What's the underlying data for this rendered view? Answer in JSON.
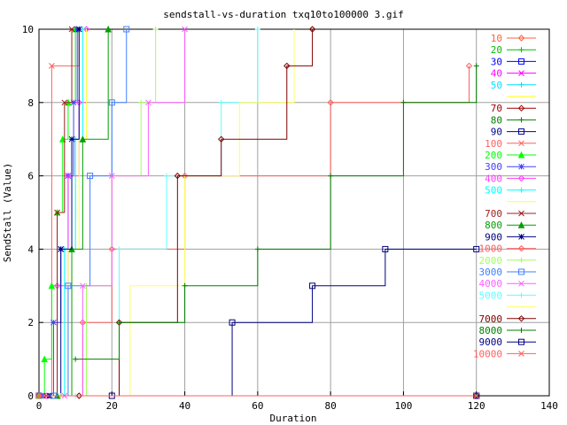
{
  "chart_data": {
    "type": "line",
    "title": "sendstall-vs-duration txq10to100000 3.gif",
    "xlabel": "Duration",
    "ylabel": "SendStall (Value)",
    "xlim": [
      0,
      140
    ],
    "ylim": [
      0,
      10
    ],
    "xticks": [
      0,
      20,
      40,
      60,
      80,
      100,
      120,
      140
    ],
    "yticks": [
      0,
      2,
      4,
      6,
      8,
      10
    ],
    "grid": true,
    "legend_position": "right",
    "series": [
      {
        "name": "10",
        "color": "#ff6040",
        "marker": "diamond",
        "x": [
          0,
          120
        ],
        "y": [
          0,
          0
        ]
      },
      {
        "name": "20",
        "color": "#00c000",
        "marker": "plus",
        "x": [
          0,
          120
        ],
        "y": [
          0,
          0
        ]
      },
      {
        "name": "30",
        "color": "#0000ff",
        "marker": "square",
        "x": [
          0,
          120
        ],
        "y": [
          0,
          0
        ]
      },
      {
        "name": "40",
        "color": "#ff00ff",
        "marker": "cross",
        "x": [
          0,
          120
        ],
        "y": [
          0,
          0
        ]
      },
      {
        "name": "50",
        "color": "#00e0ff",
        "marker": "plus",
        "x": [
          0,
          120
        ],
        "y": [
          0,
          0
        ]
      },
      {
        "name": "",
        "color": "#ffff00",
        "marker": "none",
        "x": [
          0,
          120
        ],
        "y": [
          0,
          0
        ]
      },
      {
        "name": "70",
        "color": "#a00000",
        "marker": "diamond",
        "x": [
          0,
          120
        ],
        "y": [
          0,
          0
        ]
      },
      {
        "name": "80",
        "color": "#008000",
        "marker": "plus",
        "x": [
          0,
          120
        ],
        "y": [
          0,
          0
        ]
      },
      {
        "name": "90",
        "color": "#000090",
        "marker": "square",
        "x": [
          0,
          120
        ],
        "y": [
          0,
          0
        ]
      },
      {
        "name": "100",
        "color": "#ff6060",
        "marker": "cross",
        "x": [
          0,
          3.5,
          11
        ],
        "y": [
          0,
          9,
          10
        ]
      },
      {
        "name": "200",
        "color": "#00ff00",
        "marker": "triangle",
        "x": [
          0,
          1.5,
          3.5,
          5,
          6.5,
          8,
          10
        ],
        "y": [
          0,
          1,
          3,
          5,
          7,
          8,
          10
        ]
      },
      {
        "name": "300",
        "color": "#4040ff",
        "marker": "star",
        "x": [
          1,
          4,
          6,
          8,
          9.5,
          10.5
        ],
        "y": [
          0,
          2,
          4,
          6,
          8,
          10
        ]
      },
      {
        "name": "400",
        "color": "#ff40ff",
        "marker": "diamond",
        "x": [
          2,
          5,
          8,
          11,
          13
        ],
        "y": [
          0,
          3,
          6,
          8,
          10
        ]
      },
      {
        "name": "500",
        "color": "#00ffff",
        "marker": "plus",
        "x": [
          3,
          7,
          10,
          12
        ],
        "y": [
          0,
          4,
          7,
          10
        ]
      },
      {
        "name": "",
        "color": "#ffff40",
        "marker": "none",
        "x": [
          4,
          8,
          11,
          13
        ],
        "y": [
          0,
          4,
          7,
          10
        ]
      },
      {
        "name": "700",
        "color": "#a02020",
        "marker": "cross",
        "x": [
          2,
          5,
          7,
          9
        ],
        "y": [
          0,
          5,
          8,
          10
        ]
      },
      {
        "name": "800",
        "color": "#00a000",
        "marker": "triangle",
        "x": [
          5,
          9,
          12,
          19
        ],
        "y": [
          0,
          4,
          7,
          10
        ]
      },
      {
        "name": "900",
        "color": "#000080",
        "marker": "star",
        "x": [
          3,
          6,
          9,
          11
        ],
        "y": [
          0,
          4,
          7,
          10
        ]
      },
      {
        "name": "1000",
        "color": "#ff6060",
        "marker": "diamond",
        "x": [
          0,
          12,
          20,
          40,
          80,
          118
        ],
        "y": [
          0,
          2,
          4,
          6,
          8,
          9
        ]
      },
      {
        "name": "2000",
        "color": "#a0ff60",
        "marker": "plus",
        "x": [
          6,
          13,
          20,
          28,
          32
        ],
        "y": [
          0,
          3,
          6,
          8,
          10
        ]
      },
      {
        "name": "3000",
        "color": "#4080ff",
        "marker": "square",
        "x": [
          4,
          8,
          14,
          20,
          24
        ],
        "y": [
          0,
          3,
          6,
          8,
          10
        ]
      },
      {
        "name": "4000",
        "color": "#ff60ff",
        "marker": "cross",
        "x": [
          7,
          12,
          20,
          30,
          40
        ],
        "y": [
          0,
          3,
          6,
          8,
          10
        ]
      },
      {
        "name": "5000",
        "color": "#60ffff",
        "marker": "plus",
        "x": [
          10,
          22,
          35,
          50,
          60
        ],
        "y": [
          0,
          4,
          6,
          8,
          10
        ]
      },
      {
        "name": "",
        "color": "#ffff60",
        "marker": "none",
        "x": [
          12,
          25,
          40,
          55,
          70
        ],
        "y": [
          0,
          3,
          6,
          8,
          10
        ]
      },
      {
        "name": "7000",
        "color": "#800000",
        "marker": "diamond",
        "x": [
          11,
          22,
          38,
          50,
          68,
          75
        ],
        "y": [
          0,
          2,
          6,
          7,
          9,
          10
        ]
      },
      {
        "name": "8000",
        "color": "#008000",
        "marker": "plus",
        "x": [
          10,
          22,
          40,
          60,
          80,
          100,
          120
        ],
        "y": [
          1,
          2,
          3,
          4,
          6,
          8,
          9
        ]
      },
      {
        "name": "9000",
        "color": "#000080",
        "marker": "square",
        "x": [
          20,
          53,
          75,
          95,
          120
        ],
        "y": [
          0,
          2,
          3,
          4,
          4
        ]
      },
      {
        "name": "10000",
        "color": "#ff6060",
        "marker": "cross",
        "x": [
          0,
          120
        ],
        "y": [
          0,
          0
        ]
      }
    ]
  }
}
